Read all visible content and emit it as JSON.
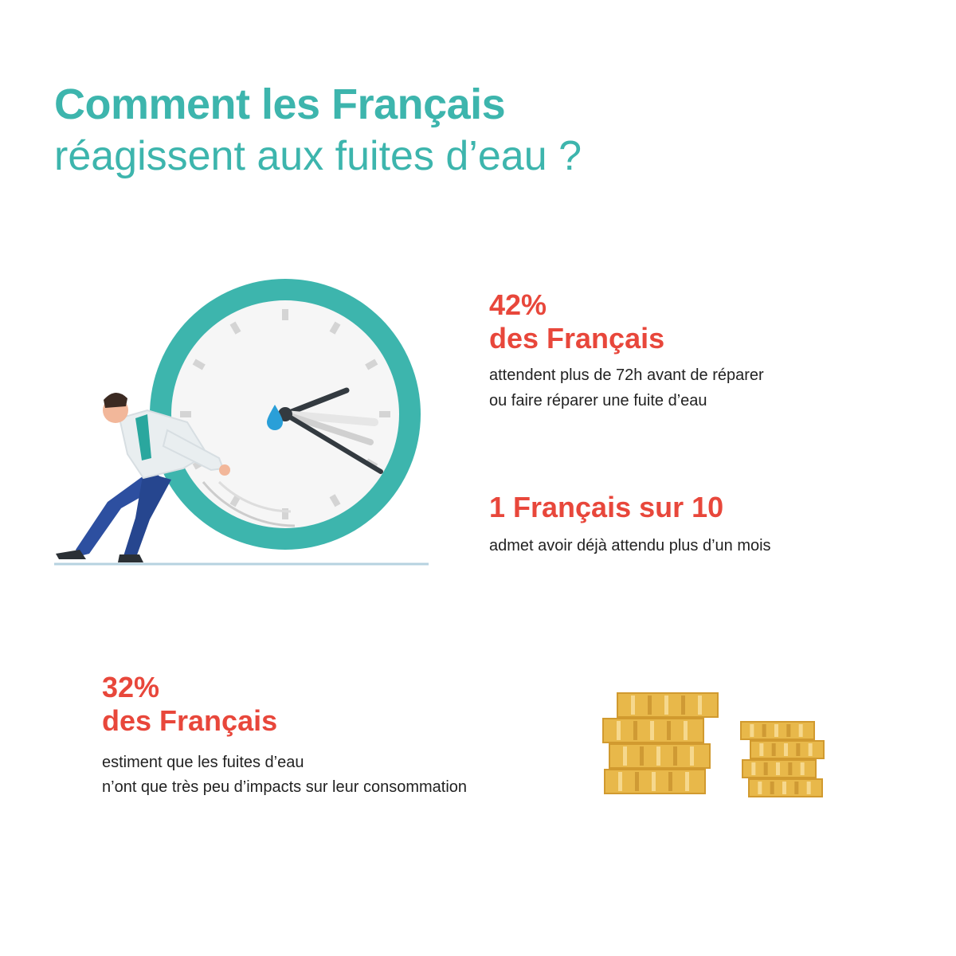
{
  "header": {
    "title_line1": "Comment les Français",
    "title_line2": "réagissent aux fuites d’eau ?"
  },
  "stats": [
    {
      "value": "42%",
      "subject": "des Français",
      "description_line1": "attendent plus de 72h avant de réparer",
      "description_line2": "ou faire réparer une fuite d’eau"
    },
    {
      "value": "1 Français sur 10",
      "description_line1": "admet avoir déjà attendu plus d’un mois"
    },
    {
      "value": "32%",
      "subject": "des Français",
      "description_line1": "estiment que les fuites d’eau",
      "description_line2": "n’ont que très peu d’impacts sur leur consommation"
    }
  ],
  "illustrations": {
    "clock": "clock-with-water-drop-icon",
    "person": "man-pushing-clock-illustration",
    "coins": "coin-stacks-icon"
  },
  "colors": {
    "teal": "#3db5ad",
    "red": "#e8473b",
    "gold": "#e8b84a",
    "drop": "#2a9fd8"
  }
}
